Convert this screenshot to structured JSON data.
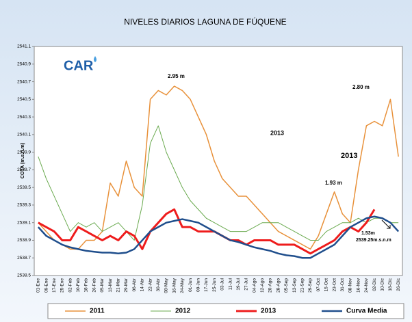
{
  "chart_data": {
    "type": "line",
    "title": "NIVELES DIARIOS LAGUNA DE FÚQUENE",
    "y_label": "COTA (m.s.n.m)",
    "logo": "CAR",
    "categories": [
      "01-Ene",
      "09-Ene",
      "17-Ene",
      "25-Ene",
      "02-Feb",
      "10-Feb",
      "18-Feb",
      "26-Feb",
      "05-Mar",
      "13-Mar",
      "21-Mar",
      "29-Mar",
      "06-Abr",
      "14-Abr",
      "22-Abr",
      "30-Abr",
      "08-May",
      "16-May",
      "24-May",
      "01-Jun",
      "09-Jun",
      "17-Jun",
      "25-Jun",
      "03-Jul",
      "11-Jul",
      "19-Jul",
      "27-Jul",
      "04-Ago",
      "12-Ago",
      "20-Ago",
      "28-Ago",
      "05-Sep",
      "13-Sep",
      "21-Sep",
      "29-Sep",
      "07-Oct",
      "15-Oct",
      "23-Oct",
      "31-Oct",
      "08-Nov",
      "16-Nov",
      "24-Nov",
      "02-Dic",
      "10-Dic",
      "18-Dic",
      "26-Dic"
    ],
    "series": [
      {
        "name": "2011",
        "color": "#e8913a",
        "values": [
          2539.1,
          2539.0,
          2538.9,
          2538.85,
          2538.8,
          2538.8,
          2538.9,
          2538.9,
          2539.0,
          2539.55,
          2539.4,
          2539.8,
          2539.5,
          2539.4,
          2540.5,
          2540.6,
          2540.55,
          2540.65,
          2540.6,
          2540.5,
          2540.3,
          2540.1,
          2539.8,
          2539.6,
          2539.5,
          2539.4,
          2539.4,
          2539.3,
          2539.2,
          2539.1,
          2539.0,
          2538.95,
          2538.9,
          2538.85,
          2538.8,
          2538.95,
          2539.2,
          2539.45,
          2539.2,
          2539.1,
          2539.7,
          2540.2,
          2540.25,
          2540.2,
          2540.5,
          2539.85
        ]
      },
      {
        "name": "2012",
        "color": "#6aaa4f",
        "values": [
          2539.85,
          2539.6,
          2539.4,
          2539.2,
          2539.0,
          2539.1,
          2539.05,
          2539.1,
          2539.0,
          2539.05,
          2539.1,
          2539.0,
          2538.9,
          2539.3,
          2540.0,
          2540.2,
          2539.9,
          2539.7,
          2539.5,
          2539.35,
          2539.25,
          2539.15,
          2539.1,
          2539.05,
          2539.0,
          2539.0,
          2539.0,
          2539.05,
          2539.1,
          2539.1,
          2539.1,
          2539.05,
          2539.0,
          2538.95,
          2538.9,
          2538.9,
          2539.0,
          2539.05,
          2539.1,
          2539.1,
          2539.15,
          2539.1,
          2539.15,
          2539.15,
          2539.1,
          2539.1
        ]
      },
      {
        "name": "2013",
        "color": "#ee1c1c",
        "values": [
          2539.1,
          2539.05,
          2539.0,
          2538.9,
          2538.9,
          2539.05,
          2539.0,
          2538.95,
          2538.9,
          2538.95,
          2538.9,
          2539.0,
          2538.95,
          2538.8,
          2539.0,
          2539.1,
          2539.2,
          2539.25,
          2539.05,
          2539.05,
          2539.0,
          2539.0,
          2539.0,
          2538.95,
          2538.9,
          2538.9,
          2538.85,
          2538.9,
          2538.9,
          2538.9,
          2538.85,
          2538.85,
          2538.85,
          2538.8,
          2538.75,
          2538.8,
          2538.85,
          2538.9,
          2539.0,
          2539.05,
          2539.0,
          2539.1,
          2539.25,
          null,
          null,
          null
        ]
      },
      {
        "name": "Curva Media",
        "color": "#1f4e8c",
        "values": [
          2539.05,
          2538.95,
          2538.9,
          2538.85,
          2538.82,
          2538.8,
          2538.78,
          2538.77,
          2538.76,
          2538.76,
          2538.75,
          2538.76,
          2538.8,
          2538.9,
          2539.0,
          2539.05,
          2539.1,
          2539.12,
          2539.14,
          2539.12,
          2539.1,
          2539.05,
          2539.0,
          2538.95,
          2538.9,
          2538.88,
          2538.85,
          2538.82,
          2538.8,
          2538.78,
          2538.75,
          2538.73,
          2538.72,
          2538.7,
          2538.7,
          2538.75,
          2538.8,
          2538.85,
          2538.95,
          2539.05,
          2539.1,
          2539.15,
          2539.17,
          2539.15,
          2539.1,
          2539.0
        ]
      }
    ],
    "ylim": [
      2538.5,
      2541.1
    ],
    "yticks": [
      2538.5,
      2538.7,
      2538.9,
      2539.1,
      2539.3,
      2539.5,
      2539.7,
      2539.9,
      2540.1,
      2540.3,
      2540.5,
      2540.7,
      2540.9,
      2541.1
    ],
    "grid": false,
    "legend": "bottom",
    "annotations": [
      "2.95 m",
      "2.80 m",
      "1.93 m",
      "2013",
      "2013",
      "1.53m",
      "2539.25m.s.n.m"
    ]
  }
}
